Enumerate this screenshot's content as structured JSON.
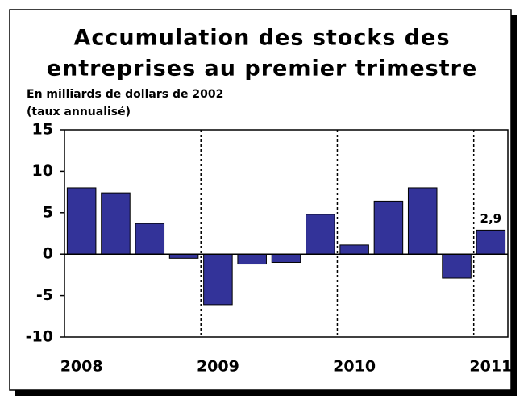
{
  "chart_data": {
    "type": "bar",
    "title": [
      "Accumulation des stocks des",
      "entreprises au premier trimestre"
    ],
    "subtitle": [
      "En milliards de dollars de 2002",
      "(taux annualisé)"
    ],
    "categories": [
      "2008",
      null,
      null,
      null,
      "2009",
      null,
      null,
      null,
      "2010",
      null,
      null,
      null,
      "2011"
    ],
    "values": [
      8.0,
      7.4,
      3.7,
      -0.5,
      -6.1,
      -1.2,
      -1.0,
      4.8,
      1.1,
      6.4,
      8.0,
      -2.9,
      2.9
    ],
    "value_labels": [
      null,
      null,
      null,
      null,
      null,
      null,
      null,
      null,
      null,
      null,
      null,
      null,
      "2,9"
    ],
    "color": "#333399",
    "ylim": [
      -10,
      15
    ],
    "yticks": [
      -10,
      -5,
      0,
      5,
      10,
      15
    ],
    "grid": false
  }
}
